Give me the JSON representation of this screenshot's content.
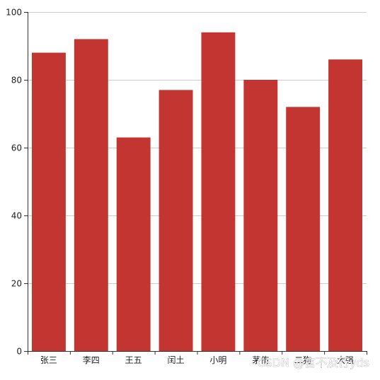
{
  "chart_data": {
    "type": "bar",
    "categories": [
      "张三",
      "李四",
      "王五",
      "闰土",
      "小明",
      "茅侑",
      "二狗",
      "大强"
    ],
    "values": [
      88,
      92,
      63,
      77,
      94,
      80,
      72,
      86
    ],
    "ylim": [
      0,
      100
    ],
    "yticks": [
      0,
      20,
      40,
      60,
      80,
      100
    ],
    "grid": true,
    "legend": "none",
    "colors": {
      "bar": "#c23531",
      "grid": "#cccccc",
      "axis": "#333333",
      "text": "#222222"
    }
  },
  "watermark": {
    "text": "CSDN @言不及行yds"
  }
}
